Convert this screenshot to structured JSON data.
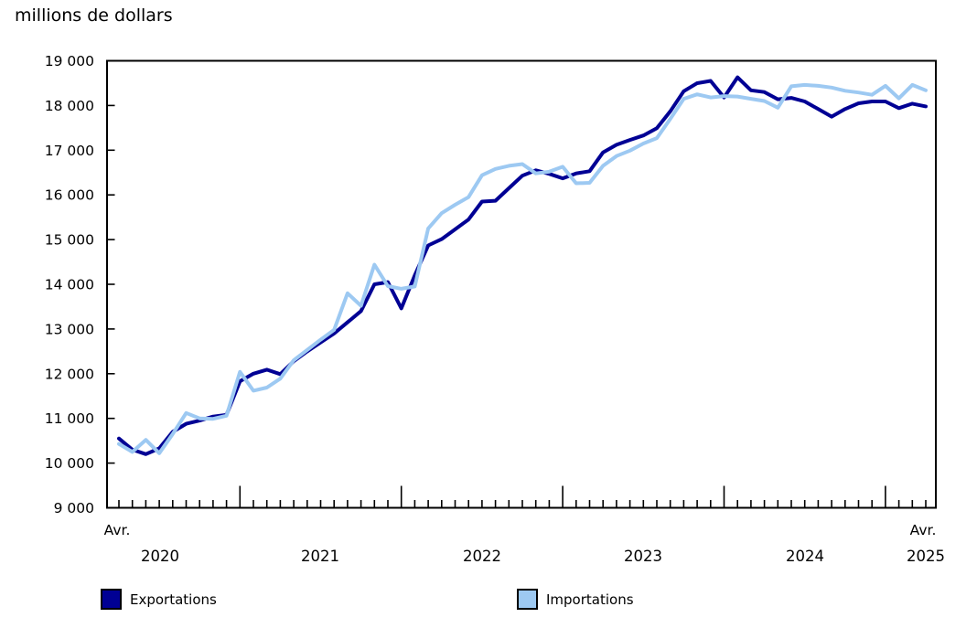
{
  "title": "millions de dollars",
  "chart_data": {
    "type": "line",
    "title": "",
    "ylabel": "millions de dollars",
    "xlabel": "",
    "ylim": [
      9000,
      19000
    ],
    "ytick_step": 1000,
    "ytick_labels": [
      "19 000",
      "18 000",
      "17 000",
      "16 000",
      "15 000",
      "14 000",
      "13 000",
      "12 000",
      "11 000",
      "10 000",
      "9 000"
    ],
    "x_axis": {
      "start_month_label": "Avr.",
      "end_month_label": "Avr.",
      "year_labels": [
        "2020",
        "2021",
        "2022",
        "2023",
        "2024",
        "2025"
      ],
      "months_span": "Avr. 2020 - Avr. 2025",
      "points_count": 61
    },
    "grid": "off",
    "legend_position": "bottom",
    "series": [
      {
        "name": "Exportations",
        "color": "#000094",
        "values": [
          10550,
          10300,
          10200,
          10330,
          10700,
          10880,
          10950,
          11040,
          11080,
          11830,
          12000,
          12090,
          11990,
          12280,
          12500,
          12700,
          12900,
          13150,
          13400,
          14000,
          14050,
          13460,
          14200,
          14870,
          15010,
          15230,
          15450,
          15850,
          15870,
          16150,
          16430,
          16550,
          16470,
          16370,
          16480,
          16530,
          16950,
          17120,
          17230,
          17330,
          17490,
          17870,
          18320,
          18500,
          18550,
          18180,
          18630,
          18340,
          18300,
          18140,
          18170,
          18090,
          17920,
          17750,
          17920,
          18050,
          18090,
          18090,
          17940,
          18040,
          17980
        ]
      },
      {
        "name": "Importations",
        "color": "#9dc9f2",
        "values": [
          10430,
          10250,
          10520,
          10220,
          10650,
          11120,
          11000,
          10990,
          11060,
          12040,
          11620,
          11690,
          11890,
          12300,
          12530,
          12760,
          12980,
          13800,
          13520,
          14440,
          13960,
          13900,
          13950,
          15250,
          15590,
          15780,
          15950,
          16440,
          16580,
          16650,
          16690,
          16480,
          16520,
          16630,
          16260,
          16270,
          16650,
          16870,
          16990,
          17150,
          17270,
          17700,
          18150,
          18250,
          18180,
          18210,
          18200,
          18150,
          18100,
          17950,
          18430,
          18460,
          18440,
          18400,
          18330,
          18290,
          18240,
          18440,
          18160,
          18460,
          18340
        ]
      }
    ]
  },
  "legend": [
    {
      "label": "Exportations",
      "color": "#000094"
    },
    {
      "label": "Importations",
      "color": "#9dc9f2"
    }
  ]
}
